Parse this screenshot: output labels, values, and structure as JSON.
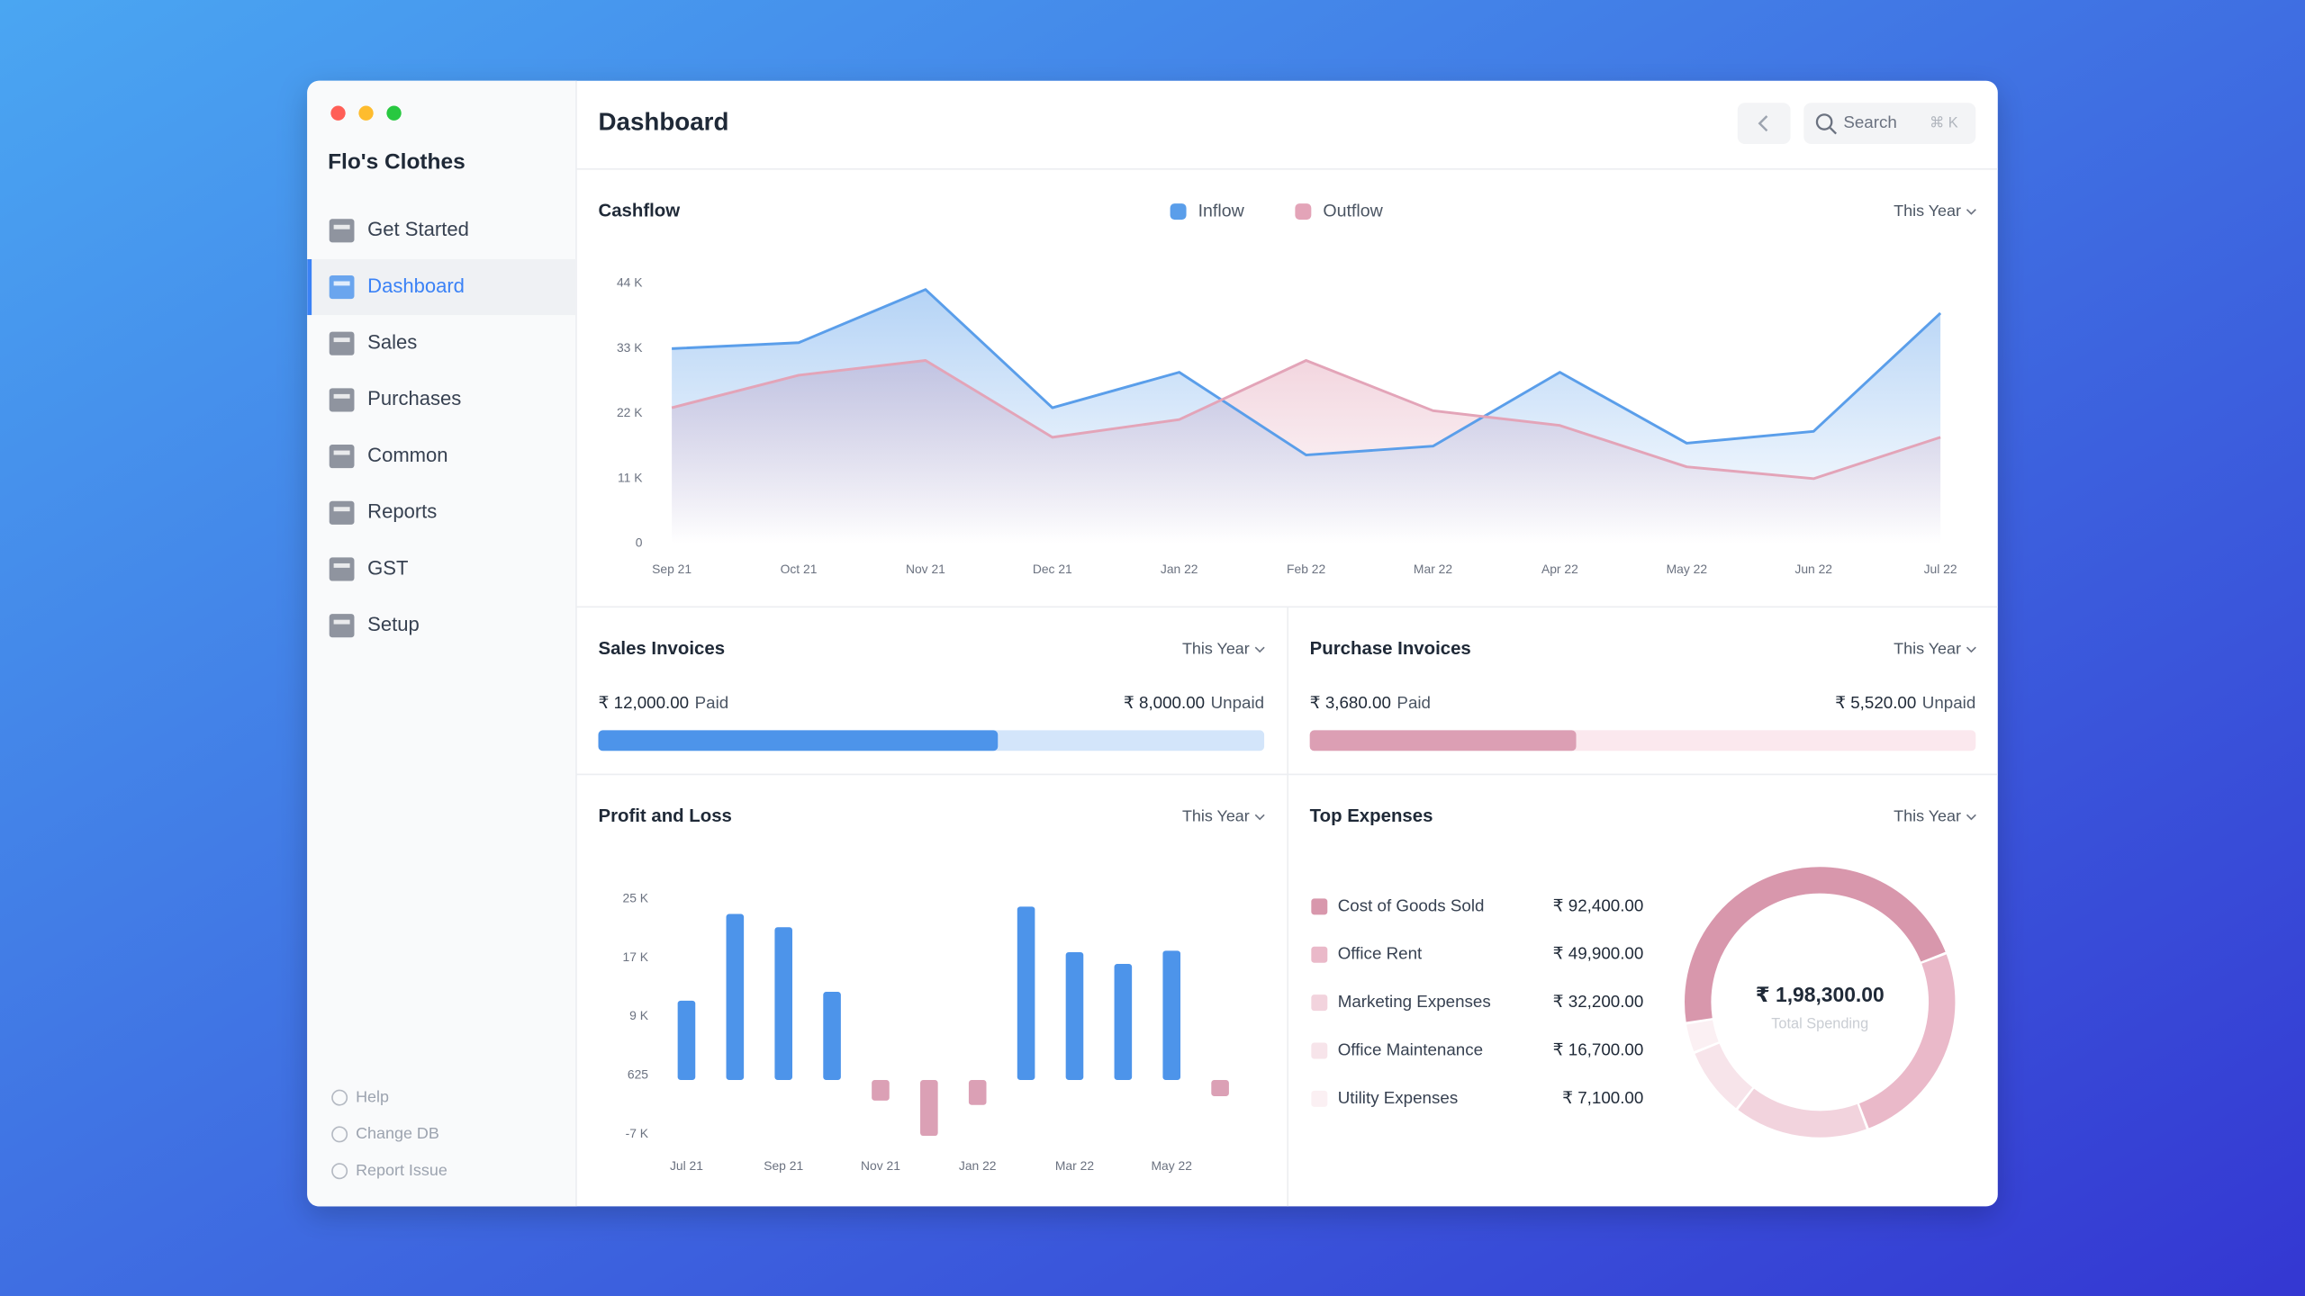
{
  "sidebar": {
    "company": "Flo's Clothes",
    "items": [
      "Get Started",
      "Dashboard",
      "Sales",
      "Purchases",
      "Common",
      "Reports",
      "GST",
      "Setup"
    ],
    "selected": "Dashboard",
    "footer": [
      "Help",
      "Change DB",
      "Report Issue"
    ]
  },
  "header": {
    "title": "Dashboard",
    "search": "Search",
    "shortcut": "⌘ K"
  },
  "cashflow": {
    "type": "line",
    "title": "Cashflow",
    "period": "This Year",
    "categories": [
      "Sep 21",
      "Oct 21",
      "Nov 21",
      "Dec 21",
      "Jan 22",
      "Feb 22",
      "Mar 22",
      "Apr 22",
      "May 22",
      "Jun 22",
      "Jul 22"
    ],
    "series": [
      {
        "name": "Inflow",
        "color": "#5a9eea",
        "values": [
          33000,
          34000,
          43000,
          23000,
          29000,
          15000,
          16500,
          29000,
          17000,
          19000,
          39000
        ]
      },
      {
        "name": "Outflow",
        "color": "#e3a4b8",
        "values": [
          23000,
          28500,
          31000,
          18000,
          21000,
          31000,
          22500,
          20000,
          13000,
          11000,
          18000
        ]
      }
    ],
    "ylim": [
      0,
      44000
    ],
    "yticks": [
      0,
      {
        "value": 11000,
        "label": "11 K"
      },
      {
        "value": 22000,
        "label": "22 K"
      },
      {
        "value": 33000,
        "label": "33 K"
      },
      {
        "value": 44000,
        "label": "44 K"
      }
    ]
  },
  "sales_invoices": {
    "type": "progress",
    "title": "Sales Invoices",
    "period": "This Year",
    "categories": [
      "Paid",
      "Unpaid"
    ],
    "values": [
      12000,
      8000
    ],
    "value_labels": [
      "₹ 12,000.00",
      "₹ 8,000.00"
    ],
    "colors": [
      "#4d94ea",
      "#d3e5fa"
    ]
  },
  "purchase_invoices": {
    "type": "progress",
    "title": "Purchase Invoices",
    "period": "This Year",
    "categories": [
      "Paid",
      "Unpaid"
    ],
    "values": [
      3680,
      5520
    ],
    "value_labels": [
      "₹ 3,680.00",
      "₹ 5,520.00"
    ],
    "colors": [
      "#dc9fb4",
      "#fbe8ee"
    ]
  },
  "profit_and_loss": {
    "type": "bar",
    "title": "Profit and Loss",
    "period": "This Year",
    "categories": [
      "Jul 21",
      null,
      "Sep 21",
      null,
      "Nov 21",
      null,
      "Jan 22",
      null,
      "Mar 22",
      null,
      "May 22",
      null
    ],
    "values": [
      10800,
      22600,
      20800,
      12000,
      -2800,
      -7600,
      -3400,
      23600,
      17400,
      15800,
      17600,
      -2200
    ],
    "colors": {
      "positive": "#4d94ea",
      "negative": "#dba0b5"
    },
    "ylim": [
      -9000,
      27000
    ],
    "yticks": [
      {
        "value": -7375,
        "label": "-7 K"
      },
      625,
      {
        "value": 8625,
        "label": "9 K"
      },
      {
        "value": 16625,
        "label": "17 K"
      },
      {
        "value": 24625,
        "label": "25 K"
      }
    ]
  },
  "top_expenses": {
    "type": "donut",
    "title": "Top Expenses",
    "period": "This Year",
    "categories": [
      "Cost of Goods Sold",
      "Office Rent",
      "Marketing Expenses",
      "Office Maintenance",
      "Utility Expenses"
    ],
    "values": [
      92400,
      49900,
      32200,
      16700,
      7100
    ],
    "value_labels": [
      "₹ 92,400.00",
      "₹ 49,900.00",
      "₹ 32,200.00",
      "₹ 16,700.00",
      "₹ 7,100.00"
    ],
    "colors": [
      "#d897ac",
      "#eab9c9",
      "#f2d3dd",
      "#f7e4ea",
      "#fbf0f3"
    ],
    "total": "₹ 1,98,300.00",
    "total_caption": "Total Spending"
  }
}
